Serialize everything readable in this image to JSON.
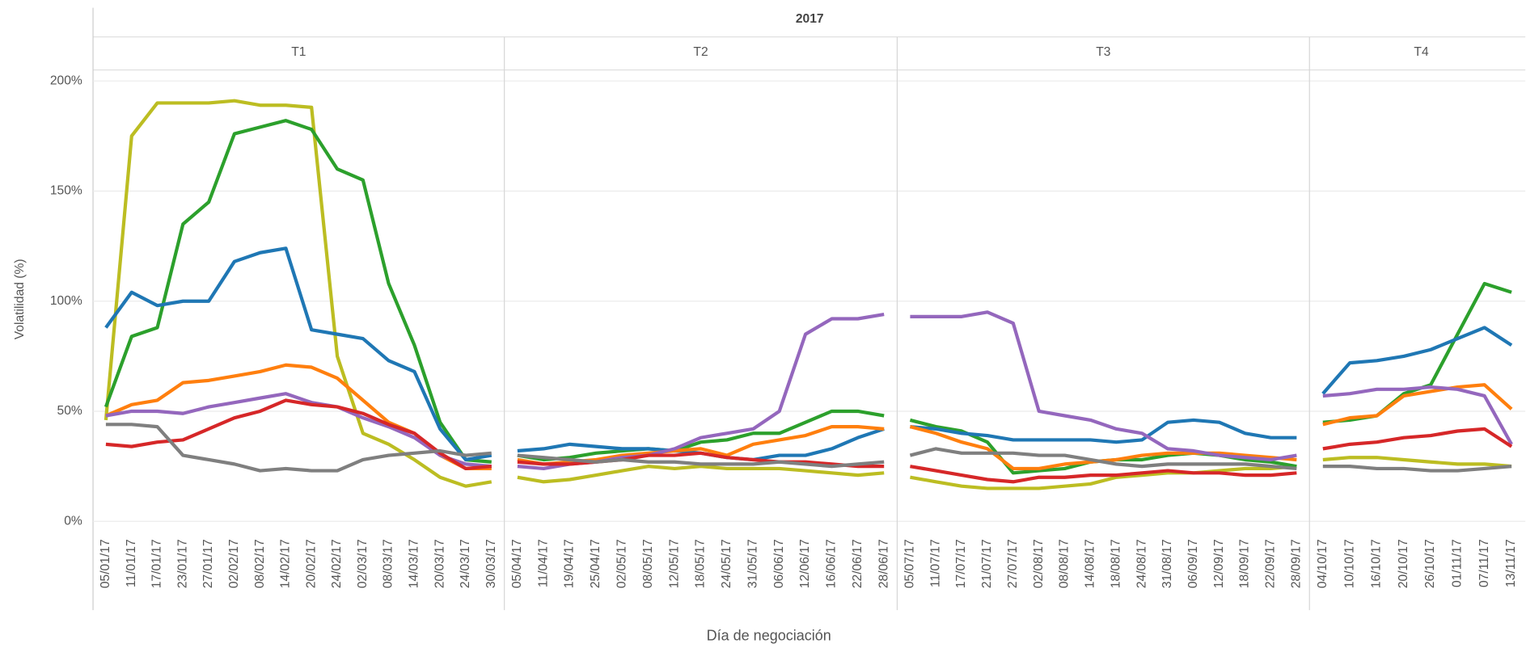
{
  "chart_data": {
    "type": "line",
    "header": "2017",
    "ylabel": "Volatilidad (%)",
    "xlabel": "Día de negociación",
    "ylim": [
      -5,
      205
    ],
    "yticks": [
      {
        "value": 0,
        "label": "0%"
      },
      {
        "value": 50,
        "label": "50%"
      },
      {
        "value": 100,
        "label": "100%"
      },
      {
        "value": 150,
        "label": "150%"
      },
      {
        "value": 200,
        "label": "200%"
      }
    ],
    "grid": true,
    "panels": [
      {
        "label": "T1",
        "categories": [
          "05/01/17",
          "11/01/17",
          "17/01/17",
          "23/01/17",
          "27/01/17",
          "02/02/17",
          "08/02/17",
          "14/02/17",
          "20/02/17",
          "24/02/17",
          "02/03/17",
          "08/03/17",
          "14/03/17",
          "20/03/17",
          "24/03/17",
          "30/03/17"
        ],
        "series": [
          {
            "color": "#bcbd22",
            "values": [
              46,
              175,
              190,
              190,
              190,
              191,
              189,
              189,
              188,
              75,
              40,
              35,
              28,
              20,
              16,
              18
            ]
          },
          {
            "color": "#2ca02c",
            "values": [
              52,
              84,
              88,
              135,
              145,
              176,
              179,
              182,
              178,
              160,
              155,
              108,
              80,
              45,
              28,
              27
            ]
          },
          {
            "color": "#1f77b4",
            "values": [
              88,
              104,
              98,
              100,
              100,
              118,
              122,
              124,
              87,
              85,
              83,
              73,
              68,
              42,
              28,
              30
            ]
          },
          {
            "color": "#ff7f0e",
            "values": [
              48,
              53,
              55,
              63,
              64,
              66,
              68,
              71,
              70,
              65,
              55,
              45,
              40,
              30,
              24,
              24
            ]
          },
          {
            "color": "#9467bd",
            "values": [
              48,
              50,
              50,
              49,
              52,
              54,
              56,
              58,
              54,
              52,
              47,
              43,
              38,
              30,
              26,
              25
            ]
          },
          {
            "color": "#d62728",
            "values": [
              35,
              34,
              36,
              37,
              42,
              47,
              50,
              55,
              53,
              52,
              49,
              44,
              40,
              31,
              24,
              25
            ]
          },
          {
            "color": "#7f7f7f",
            "values": [
              44,
              44,
              43,
              30,
              28,
              26,
              23,
              24,
              23,
              23,
              28,
              30,
              31,
              32,
              30,
              31
            ]
          }
        ]
      },
      {
        "label": "T2",
        "categories": [
          "05/04/17",
          "11/04/17",
          "19/04/17",
          "25/04/17",
          "02/05/17",
          "08/05/17",
          "12/05/17",
          "18/05/17",
          "24/05/17",
          "31/05/17",
          "06/06/17",
          "12/06/17",
          "16/06/17",
          "22/06/17",
          "28/06/17"
        ],
        "series": [
          {
            "color": "#bcbd22",
            "values": [
              20,
              18,
              19,
              21,
              23,
              25,
              24,
              25,
              24,
              24,
              24,
              23,
              22,
              21,
              22
            ]
          },
          {
            "color": "#2ca02c",
            "values": [
              30,
              28,
              29,
              31,
              32,
              33,
              32,
              36,
              37,
              40,
              40,
              45,
              50,
              50,
              48
            ]
          },
          {
            "color": "#1f77b4",
            "values": [
              32,
              33,
              35,
              34,
              33,
              33,
              32,
              31,
              29,
              28,
              30,
              30,
              33,
              38,
              42
            ]
          },
          {
            "color": "#ff7f0e",
            "values": [
              28,
              26,
              27,
              28,
              30,
              31,
              32,
              33,
              30,
              35,
              37,
              39,
              43,
              43,
              42
            ]
          },
          {
            "color": "#9467bd",
            "values": [
              25,
              24,
              26,
              27,
              29,
              30,
              33,
              38,
              40,
              42,
              50,
              85,
              92,
              92,
              94
            ]
          },
          {
            "color": "#d62728",
            "values": [
              27,
              26,
              26,
              27,
              28,
              30,
              30,
              31,
              29,
              28,
              27,
              27,
              26,
              25,
              25
            ]
          },
          {
            "color": "#7f7f7f",
            "values": [
              30,
              29,
              28,
              27,
              28,
              27,
              27,
              26,
              26,
              26,
              27,
              26,
              25,
              26,
              27
            ]
          }
        ]
      },
      {
        "label": "T3",
        "categories": [
          "05/07/17",
          "11/07/17",
          "17/07/17",
          "21/07/17",
          "27/07/17",
          "02/08/17",
          "08/08/17",
          "14/08/17",
          "18/08/17",
          "24/08/17",
          "31/08/17",
          "06/09/17",
          "12/09/17",
          "18/09/17",
          "22/09/17",
          "28/09/17"
        ],
        "series": [
          {
            "color": "#bcbd22",
            "values": [
              20,
              18,
              16,
              15,
              15,
              15,
              16,
              17,
              20,
              21,
              22,
              22,
              23,
              24,
              24,
              25
            ]
          },
          {
            "color": "#2ca02c",
            "values": [
              46,
              43,
              41,
              36,
              22,
              23,
              24,
              27,
              28,
              28,
              30,
              31,
              30,
              28,
              27,
              25
            ]
          },
          {
            "color": "#1f77b4",
            "values": [
              43,
              42,
              40,
              39,
              37,
              37,
              37,
              37,
              36,
              37,
              45,
              46,
              45,
              40,
              38,
              38
            ]
          },
          {
            "color": "#ff7f0e",
            "values": [
              43,
              40,
              36,
              33,
              24,
              24,
              26,
              27,
              28,
              30,
              31,
              31,
              31,
              30,
              29,
              28
            ]
          },
          {
            "color": "#9467bd",
            "values": [
              93,
              93,
              93,
              95,
              90,
              50,
              48,
              46,
              42,
              40,
              33,
              32,
              30,
              29,
              28,
              30
            ]
          },
          {
            "color": "#d62728",
            "values": [
              25,
              23,
              21,
              19,
              18,
              20,
              20,
              21,
              21,
              22,
              23,
              22,
              22,
              21,
              21,
              22
            ]
          },
          {
            "color": "#7f7f7f",
            "values": [
              30,
              33,
              31,
              31,
              31,
              30,
              30,
              28,
              26,
              25,
              26,
              26,
              26,
              26,
              25,
              24
            ]
          }
        ]
      },
      {
        "label": "T4",
        "categories": [
          "04/10/17",
          "10/10/17",
          "16/10/17",
          "20/10/17",
          "26/10/17",
          "01/11/17",
          "07/11/17",
          "13/11/17"
        ],
        "series": [
          {
            "color": "#bcbd22",
            "values": [
              28,
              29,
              29,
              28,
              27,
              26,
              26,
              25
            ]
          },
          {
            "color": "#2ca02c",
            "values": [
              45,
              46,
              48,
              58,
              62,
              85,
              108,
              104
            ]
          },
          {
            "color": "#1f77b4",
            "values": [
              58,
              72,
              73,
              75,
              78,
              83,
              88,
              80
            ]
          },
          {
            "color": "#ff7f0e",
            "values": [
              44,
              47,
              48,
              57,
              59,
              61,
              62,
              51
            ]
          },
          {
            "color": "#9467bd",
            "values": [
              57,
              58,
              60,
              60,
              61,
              60,
              57,
              35
            ]
          },
          {
            "color": "#d62728",
            "values": [
              33,
              35,
              36,
              38,
              39,
              41,
              42,
              34
            ]
          },
          {
            "color": "#7f7f7f",
            "values": [
              25,
              25,
              24,
              24,
              23,
              23,
              24,
              25
            ]
          }
        ]
      }
    ]
  }
}
